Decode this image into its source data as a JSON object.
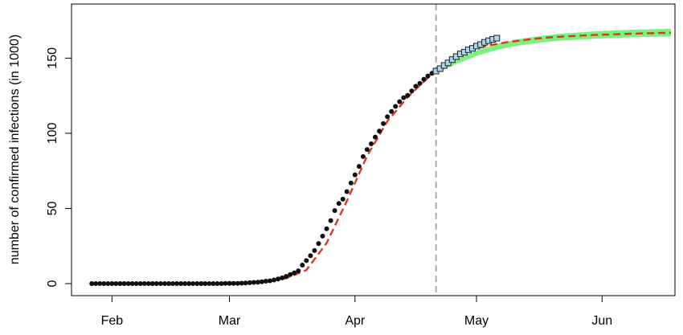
{
  "chart_data": {
    "type": "line",
    "title": "",
    "xlabel": "",
    "ylabel": "number of confirmed infections (in 1000)",
    "x_ticks": [
      "Feb",
      "Mar",
      "Apr",
      "May",
      "Jun"
    ],
    "y_ticks": [
      0,
      50,
      100,
      150
    ],
    "ylim": [
      -8,
      186
    ],
    "xlim": [
      "2020-01-22",
      "2020-06-19"
    ],
    "cutoff_date": "2020-04-21",
    "series": [
      {
        "role": "observed",
        "marker": "filled-circle",
        "color": "#111111",
        "x": [
          "2020-01-27",
          "2020-01-28",
          "2020-01-29",
          "2020-01-30",
          "2020-01-31",
          "2020-02-01",
          "2020-02-02",
          "2020-02-03",
          "2020-02-04",
          "2020-02-05",
          "2020-02-06",
          "2020-02-07",
          "2020-02-08",
          "2020-02-09",
          "2020-02-10",
          "2020-02-11",
          "2020-02-12",
          "2020-02-13",
          "2020-02-14",
          "2020-02-15",
          "2020-02-16",
          "2020-02-17",
          "2020-02-18",
          "2020-02-19",
          "2020-02-20",
          "2020-02-21",
          "2020-02-22",
          "2020-02-23",
          "2020-02-24",
          "2020-02-25",
          "2020-02-26",
          "2020-02-27",
          "2020-02-28",
          "2020-02-29",
          "2020-03-01",
          "2020-03-02",
          "2020-03-03",
          "2020-03-04",
          "2020-03-05",
          "2020-03-06",
          "2020-03-07",
          "2020-03-08",
          "2020-03-09",
          "2020-03-10",
          "2020-03-11",
          "2020-03-12",
          "2020-03-13",
          "2020-03-14",
          "2020-03-15",
          "2020-03-16",
          "2020-03-17",
          "2020-03-18",
          "2020-03-19",
          "2020-03-20",
          "2020-03-21",
          "2020-03-22",
          "2020-03-23",
          "2020-03-24",
          "2020-03-25",
          "2020-03-26",
          "2020-03-27",
          "2020-03-28",
          "2020-03-29",
          "2020-03-30",
          "2020-03-31",
          "2020-04-01",
          "2020-04-02",
          "2020-04-03",
          "2020-04-04",
          "2020-04-05",
          "2020-04-06",
          "2020-04-07",
          "2020-04-08",
          "2020-04-09",
          "2020-04-10",
          "2020-04-11",
          "2020-04-12",
          "2020-04-13",
          "2020-04-14",
          "2020-04-15",
          "2020-04-16",
          "2020-04-17",
          "2020-04-18",
          "2020-04-19",
          "2020-04-20"
        ],
        "values": [
          0,
          0,
          0,
          0,
          0,
          0,
          0,
          0,
          0,
          0,
          0,
          0,
          0,
          0,
          0,
          0,
          0,
          0,
          0,
          0,
          0,
          0,
          0,
          0,
          0,
          0,
          0,
          0,
          0,
          0,
          0,
          0,
          0,
          0.1,
          0.1,
          0.2,
          0.2,
          0.3,
          0.4,
          0.6,
          0.8,
          1.0,
          1.2,
          1.6,
          1.9,
          2.4,
          3.1,
          3.8,
          4.8,
          6.0,
          7.2,
          8.5,
          12.3,
          15.3,
          18.6,
          22.0,
          26.7,
          31.6,
          36.5,
          41.9,
          48.6,
          53.3,
          56.2,
          61.2,
          67.0,
          72.4,
          78.0,
          84.5,
          89.2,
          93.0,
          97.5,
          101.5,
          106.4,
          111.0,
          114.5,
          117.9,
          121.0,
          123.7,
          125.2,
          128.2,
          131.3,
          133.2,
          136.0,
          138.1,
          139.9
        ]
      },
      {
        "role": "held-out",
        "marker": "open-square",
        "color": "#a8d8ea",
        "x": [
          "2020-04-21",
          "2020-04-22",
          "2020-04-23",
          "2020-04-24",
          "2020-04-25",
          "2020-04-26",
          "2020-04-27",
          "2020-04-28",
          "2020-04-29",
          "2020-04-30",
          "2020-05-01",
          "2020-05-02",
          "2020-05-03",
          "2020-05-04",
          "2020-05-05",
          "2020-05-06"
        ],
        "values": [
          141.4,
          143.0,
          145.1,
          146.8,
          149.0,
          151.0,
          152.8,
          154.0,
          155.5,
          156.5,
          158.0,
          159.0,
          160.5,
          161.6,
          162.5,
          163.3
        ]
      },
      {
        "role": "model-fit",
        "line": "dashed",
        "color": "#d73a1e",
        "x": [
          "2020-01-27",
          "2020-03-01",
          "2020-03-10",
          "2020-03-15",
          "2020-03-20",
          "2020-03-25",
          "2020-03-30",
          "2020-04-04",
          "2020-04-09",
          "2020-04-14",
          "2020-04-19",
          "2020-04-24",
          "2020-04-29",
          "2020-05-04",
          "2020-05-09",
          "2020-05-14",
          "2020-05-19",
          "2020-05-29",
          "2020-06-08",
          "2020-06-18"
        ],
        "values": [
          0,
          0.3,
          1.5,
          3.5,
          9,
          27,
          55,
          85,
          108,
          124,
          137,
          148,
          155,
          158.5,
          160.8,
          162.5,
          163.8,
          165.3,
          166.2,
          166.9
        ]
      },
      {
        "role": "prediction-band",
        "fill": "#66ee66",
        "x": [
          "2020-04-21",
          "2020-04-26",
          "2020-05-01",
          "2020-05-06",
          "2020-05-11",
          "2020-05-16",
          "2020-05-21",
          "2020-05-31",
          "2020-06-10",
          "2020-06-18"
        ],
        "upper": [
          143,
          149,
          155,
          159.5,
          162.5,
          164.5,
          166,
          168,
          169,
          169.5
        ],
        "lower": [
          140,
          146,
          151.5,
          155.5,
          158.2,
          160,
          161.5,
          163,
          164,
          164.5
        ]
      }
    ]
  }
}
